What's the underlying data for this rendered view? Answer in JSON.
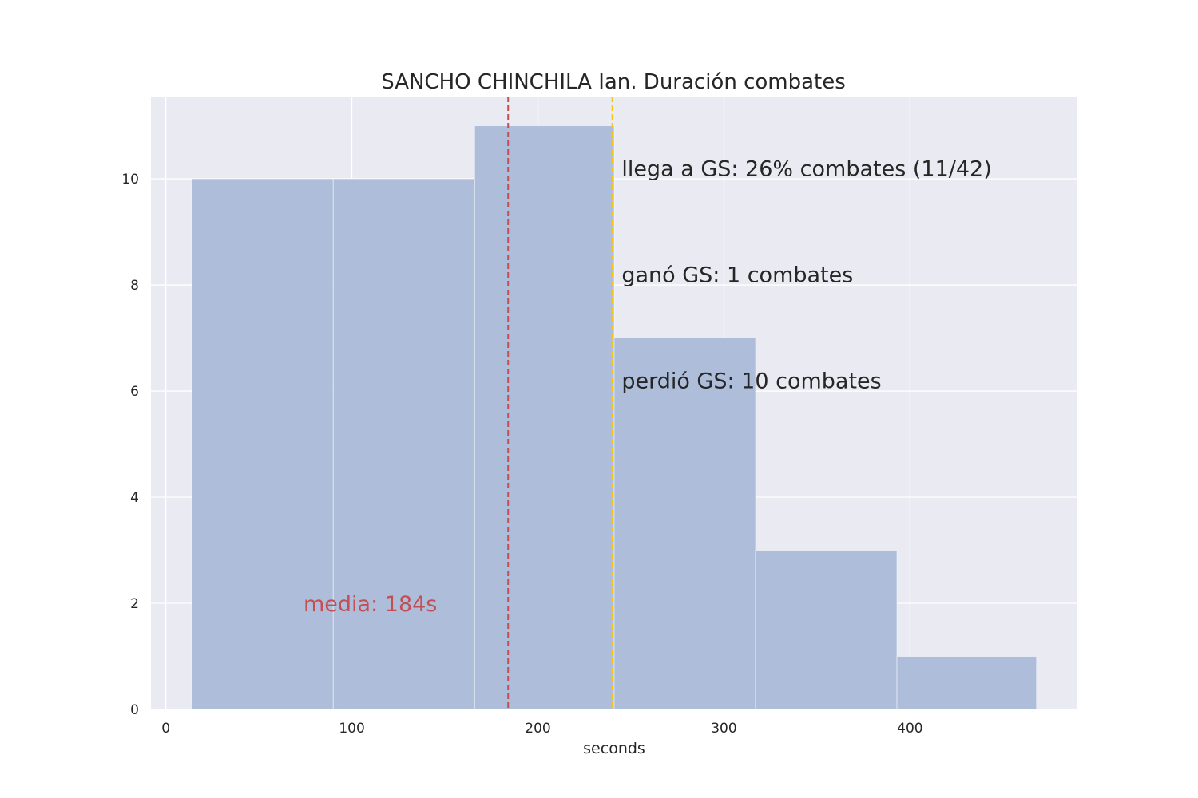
{
  "chart_data": {
    "type": "bar",
    "title": "SANCHO CHINCHILA Ian. Duración combates",
    "xlabel": "seconds",
    "ylabel": "",
    "xlim": [
      -8,
      490
    ],
    "ylim": [
      0,
      11.55
    ],
    "xticks": [
      0,
      100,
      200,
      300,
      400
    ],
    "yticks": [
      0,
      2,
      4,
      6,
      8,
      10
    ],
    "grid": true,
    "bins": [
      {
        "start": 14,
        "end": 90,
        "count": 10
      },
      {
        "start": 90,
        "end": 166,
        "count": 10
      },
      {
        "start": 166,
        "end": 241,
        "count": 11
      },
      {
        "start": 241,
        "end": 317,
        "count": 7
      },
      {
        "start": 317,
        "end": 393,
        "count": 3
      },
      {
        "start": 393,
        "end": 468,
        "count": 1
      }
    ],
    "colors": {
      "bar": "#a8b8d7",
      "background": "#eaeaf2",
      "grid": "#ffffff",
      "mean_line": "#c44e52",
      "gs_line": "#f5c518"
    },
    "mean_line": {
      "x": 184,
      "label": "media: 184s"
    },
    "gs_line": {
      "x": 240
    },
    "annotations": [
      "llega a GS: 26% combates (11/42)",
      "ganó GS: 1 combates",
      "perdió GS: 10 combates"
    ]
  }
}
